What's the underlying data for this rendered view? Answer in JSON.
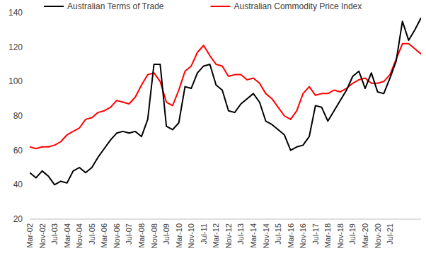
{
  "chart_data": {
    "type": "line",
    "categories": [
      "Mar-02",
      null,
      "Nov-02",
      null,
      "Jul-03",
      null,
      "Mar-04",
      null,
      "Nov-04",
      null,
      "Jul-05",
      null,
      "Mar-06",
      null,
      "Nov-06",
      null,
      "Jul-07",
      null,
      "Mar-08",
      null,
      "Nov-08",
      null,
      "Jul-09",
      null,
      "Mar-10",
      null,
      "Nov-10",
      null,
      "Jul-11",
      null,
      "Mar-12",
      null,
      "Nov-12",
      null,
      "Jul-13",
      null,
      "Mar-14",
      null,
      "Nov-14",
      null,
      "Jul-15",
      null,
      "Mar-16",
      null,
      "Nov-16",
      null,
      "Jul-17",
      null,
      "Mar-18",
      null,
      "Nov-18",
      null,
      "Jul-19",
      null,
      "Mar-20",
      null,
      "Nov-20",
      null,
      "Jul-21",
      null,
      null,
      null,
      null,
      null
    ],
    "series": [
      {
        "name": "Australian Terms of Trade",
        "color": "#000000",
        "values": [
          47,
          44,
          48,
          45,
          40,
          42,
          41,
          48,
          50,
          47,
          50,
          56,
          61,
          66,
          70,
          71,
          70,
          71,
          68,
          78,
          110,
          110,
          74,
          72,
          76,
          97,
          96,
          105,
          109,
          110,
          98,
          95,
          83,
          82,
          87,
          90,
          93,
          88,
          77,
          75,
          72,
          69,
          60,
          62,
          63,
          68,
          86,
          85,
          77,
          83,
          89,
          95,
          103,
          106,
          96,
          105,
          94,
          93,
          102,
          112,
          135,
          124,
          130,
          137
        ]
      },
      {
        "name": "Australian Commodity Price Index",
        "color": "#ff0000",
        "values": [
          62,
          61,
          62,
          62,
          63,
          65,
          69,
          71,
          73,
          78,
          79,
          82,
          83,
          85,
          89,
          88,
          87,
          91,
          98,
          104,
          105,
          100,
          88,
          86,
          95,
          106,
          109,
          117,
          121,
          115,
          110,
          109,
          103,
          104,
          104,
          101,
          102,
          99,
          93,
          90,
          85,
          80,
          78,
          83,
          93,
          97,
          92,
          93,
          93,
          95,
          94,
          96,
          99,
          101,
          102,
          99,
          99,
          100,
          104,
          113,
          122,
          122,
          119,
          116
        ]
      }
    ],
    "ylim": [
      20,
      140
    ],
    "yticks": [
      20,
      40,
      60,
      80,
      100,
      120,
      140
    ],
    "grid": false,
    "legend": "top"
  }
}
